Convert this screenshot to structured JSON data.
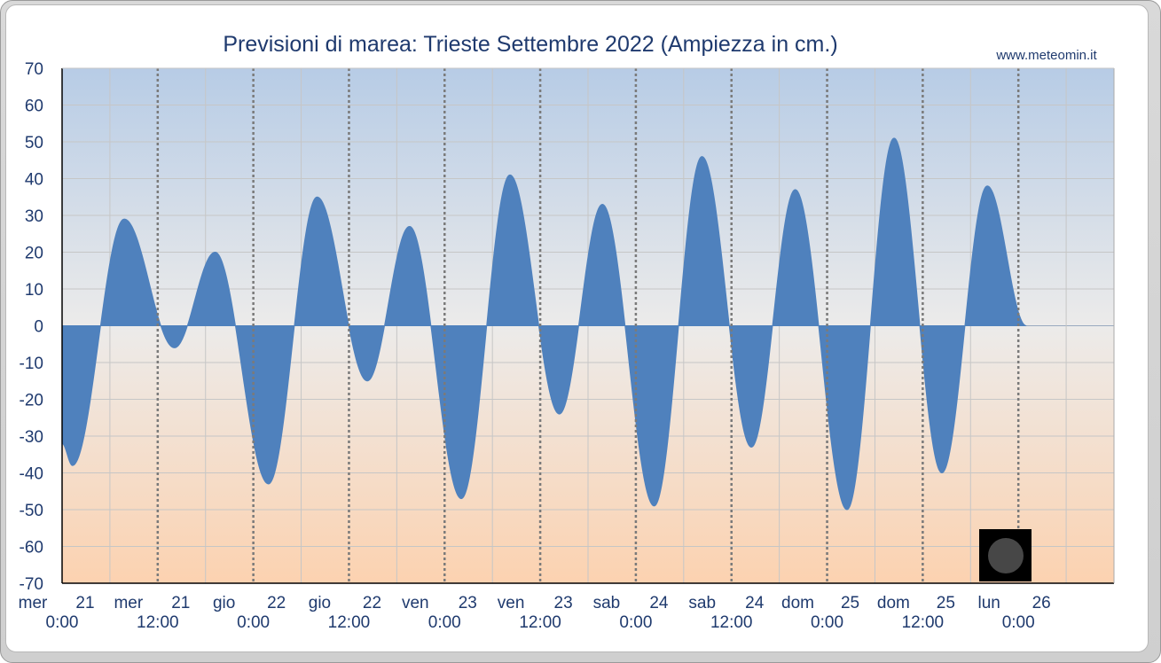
{
  "chart_data": {
    "type": "area",
    "title": "Previsioni di marea: Trieste Settembre 2022 (Ampiezza in cm.)",
    "source": "www.meteomin.it",
    "xlabel": "",
    "ylabel": "",
    "ylim": [
      -70,
      70
    ],
    "yticks": [
      70,
      60,
      50,
      40,
      30,
      20,
      10,
      0,
      -10,
      -20,
      -30,
      -40,
      -50,
      -60,
      -70
    ],
    "xlim_hours": [
      0,
      132
    ],
    "x_ticks": [
      {
        "day": "mer",
        "date": "21",
        "time": "0:00",
        "hour": 0
      },
      {
        "day": "mer",
        "date": "21",
        "time": "12:00",
        "hour": 12
      },
      {
        "day": "gio",
        "date": "22",
        "time": "0:00",
        "hour": 24
      },
      {
        "day": "gio",
        "date": "22",
        "time": "12:00",
        "hour": 36
      },
      {
        "day": "ven",
        "date": "23",
        "time": "0:00",
        "hour": 48
      },
      {
        "day": "ven",
        "date": "23",
        "time": "12:00",
        "hour": 60
      },
      {
        "day": "sab",
        "date": "24",
        "time": "0:00",
        "hour": 72
      },
      {
        "day": "sab",
        "date": "24",
        "time": "12:00",
        "hour": 84
      },
      {
        "day": "dom",
        "date": "25",
        "time": "0:00",
        "hour": 96
      },
      {
        "day": "dom",
        "date": "25",
        "time": "12:00",
        "hour": 108
      },
      {
        "day": "lun",
        "date": "26",
        "time": "0:00",
        "hour": 120
      }
    ],
    "series": [
      {
        "name": "",
        "extrema": [
          {
            "hour": 0.0,
            "value": -32
          },
          {
            "hour": 1.3,
            "value": -38
          },
          {
            "hour": 7.8,
            "value": 29
          },
          {
            "hour": 14.1,
            "value": -6
          },
          {
            "hour": 19.2,
            "value": 20
          },
          {
            "hour": 25.9,
            "value": -43
          },
          {
            "hour": 32.0,
            "value": 35
          },
          {
            "hour": 38.3,
            "value": -15
          },
          {
            "hour": 43.6,
            "value": 27
          },
          {
            "hour": 50.1,
            "value": -47
          },
          {
            "hour": 56.2,
            "value": 41
          },
          {
            "hour": 62.4,
            "value": -24
          },
          {
            "hour": 67.8,
            "value": 33
          },
          {
            "hour": 74.3,
            "value": -49
          },
          {
            "hour": 80.3,
            "value": 46
          },
          {
            "hour": 86.5,
            "value": -33
          },
          {
            "hour": 92.0,
            "value": 37
          },
          {
            "hour": 98.5,
            "value": -50
          },
          {
            "hour": 104.4,
            "value": 51
          },
          {
            "hour": 110.4,
            "value": -40
          },
          {
            "hour": 116.1,
            "value": 38
          },
          {
            "hour": 121.0,
            "value": 0
          }
        ]
      }
    ],
    "moon_phase": "new-moon",
    "grid": true,
    "colors": {
      "fill": "#4f81bd",
      "bg_top": "#b8cde6",
      "bg_mid": "#ebebeb",
      "bg_bottom": "#fbd3b3",
      "text": "#1f3a6e"
    }
  }
}
